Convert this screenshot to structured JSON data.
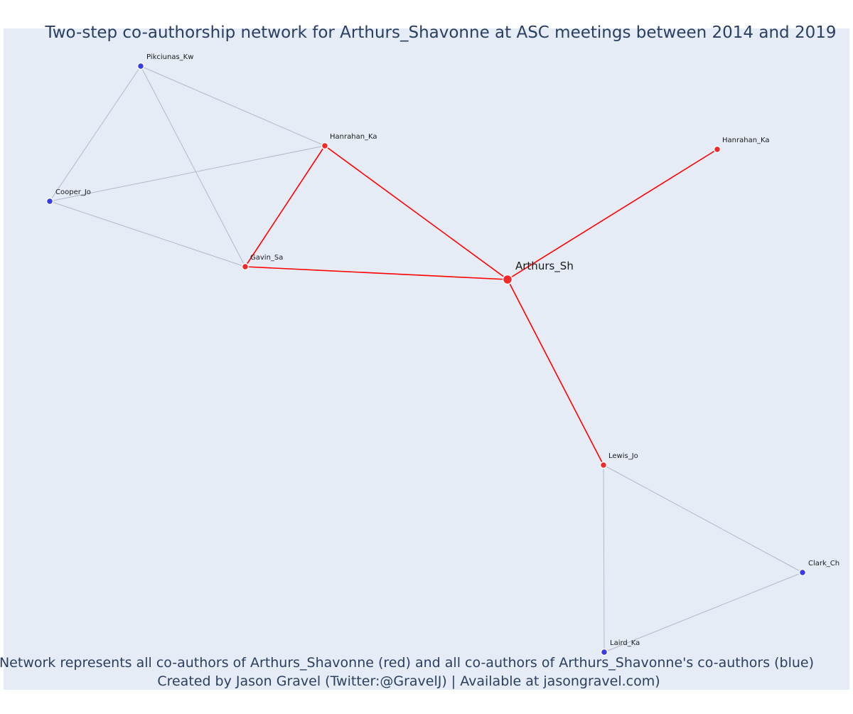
{
  "title": "Two-step co-authorship network for Arthurs_Shavonne at ASC meetings between 2014 and 2019",
  "footer": {
    "line1": "Network represents all co-authors of Arthurs_Shavonne (red) and all co-authors of Arthurs_Shavonne's co-authors (blue)",
    "line2": "Created by Jason Gravel (Twitter:@GravelJ) | Available at jasongravel.com)"
  },
  "colors": {
    "plot_background": "#e5ecf6",
    "first_step": "#ef2b2b",
    "second_step": "#3b3be6",
    "focal_edge": "#ff0000",
    "other_edge": "#b4b8c8",
    "title_text": "#2a3f5f"
  },
  "nodes": [
    {
      "id": "arthurs",
      "label": "Arthurs_Sh",
      "group": "ego"
    },
    {
      "id": "hanrahan1",
      "label": "Hanrahan_Ka",
      "group": "first"
    },
    {
      "id": "hanrahan2",
      "label": "Hanrahan_Ka",
      "group": "first"
    },
    {
      "id": "gavin",
      "label": "Gavin_Sa",
      "group": "first"
    },
    {
      "id": "lewis",
      "label": "Lewis_Jo",
      "group": "first"
    },
    {
      "id": "pikciunas",
      "label": "Pikciunas_Kw",
      "group": "second"
    },
    {
      "id": "cooper",
      "label": "Cooper_Jo",
      "group": "second"
    },
    {
      "id": "clark",
      "label": "Clark_Ch",
      "group": "second"
    },
    {
      "id": "laird",
      "label": "Laird_Ka",
      "group": "second"
    }
  ],
  "edges": [
    {
      "source": "pikciunas",
      "target": "hanrahan1",
      "kind": "other"
    },
    {
      "source": "pikciunas",
      "target": "cooper",
      "kind": "other"
    },
    {
      "source": "pikciunas",
      "target": "gavin",
      "kind": "other"
    },
    {
      "source": "cooper",
      "target": "hanrahan1",
      "kind": "other"
    },
    {
      "source": "cooper",
      "target": "gavin",
      "kind": "other"
    },
    {
      "source": "lewis",
      "target": "clark",
      "kind": "other"
    },
    {
      "source": "lewis",
      "target": "laird",
      "kind": "other"
    },
    {
      "source": "clark",
      "target": "laird",
      "kind": "other"
    },
    {
      "source": "hanrahan1",
      "target": "gavin",
      "kind": "focal"
    },
    {
      "source": "hanrahan1",
      "target": "arthurs",
      "kind": "focal"
    },
    {
      "source": "gavin",
      "target": "arthurs",
      "kind": "focal"
    },
    {
      "source": "hanrahan2",
      "target": "arthurs",
      "kind": "focal"
    },
    {
      "source": "lewis",
      "target": "arthurs",
      "kind": "focal"
    }
  ]
}
